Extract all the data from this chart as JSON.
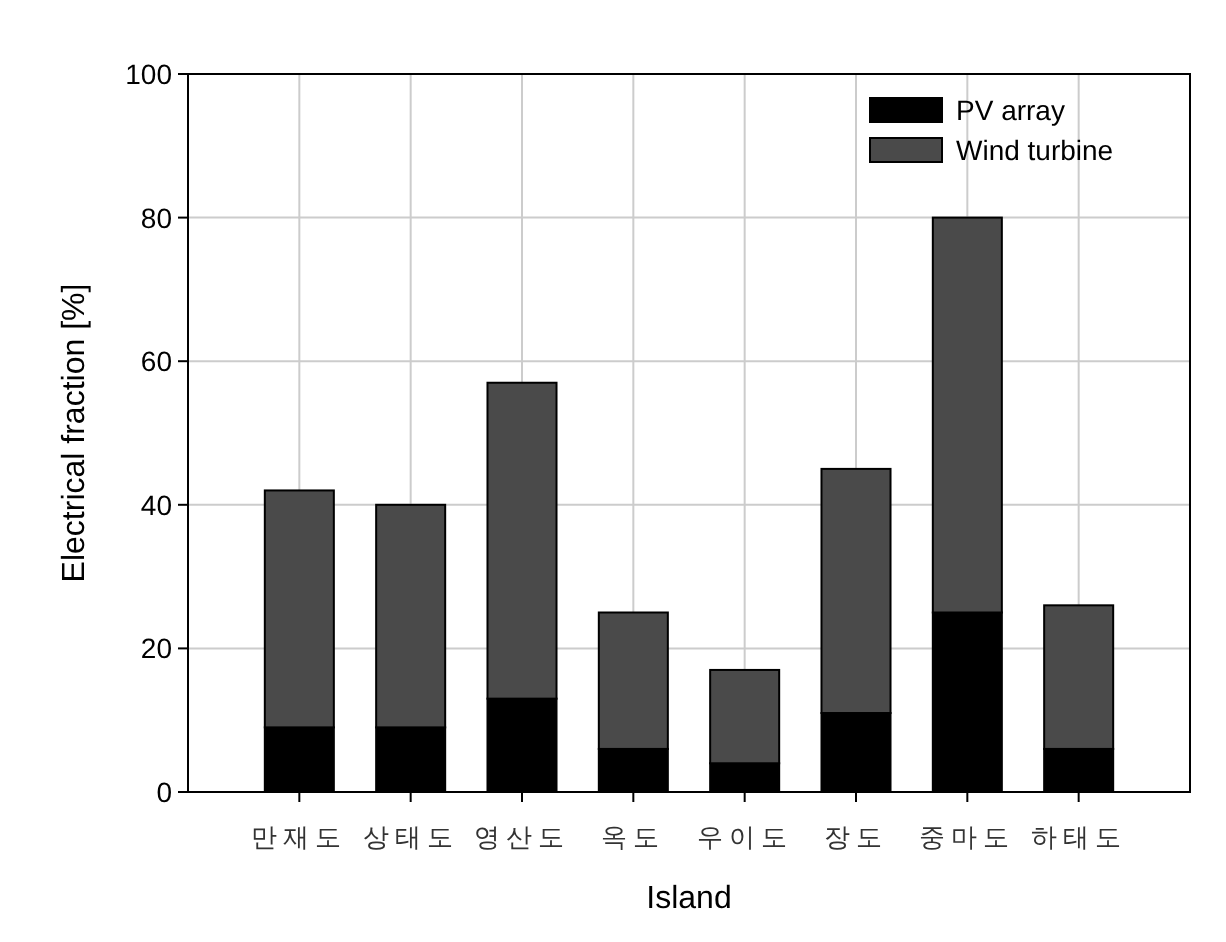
{
  "chart_data": {
    "type": "bar",
    "stacked": true,
    "xlabel": "Island",
    "ylabel": "Electrical fraction [%]",
    "categories": [
      "만재도",
      "상태도",
      "영산도",
      "옥도",
      "우이도",
      "장도",
      "중마도",
      "하태도"
    ],
    "series": [
      {
        "name": "PV array",
        "color": "#000000",
        "values": [
          9,
          9,
          13,
          6,
          4,
          11,
          25,
          6
        ]
      },
      {
        "name": "Wind turbine",
        "color": "#4a4a4a",
        "values": [
          33,
          31,
          44,
          19,
          13,
          34,
          55,
          20
        ]
      }
    ],
    "ylim": [
      0,
      100
    ],
    "yticks": [
      0,
      20,
      40,
      60,
      80,
      100
    ],
    "grid": true,
    "legend": "top right"
  }
}
